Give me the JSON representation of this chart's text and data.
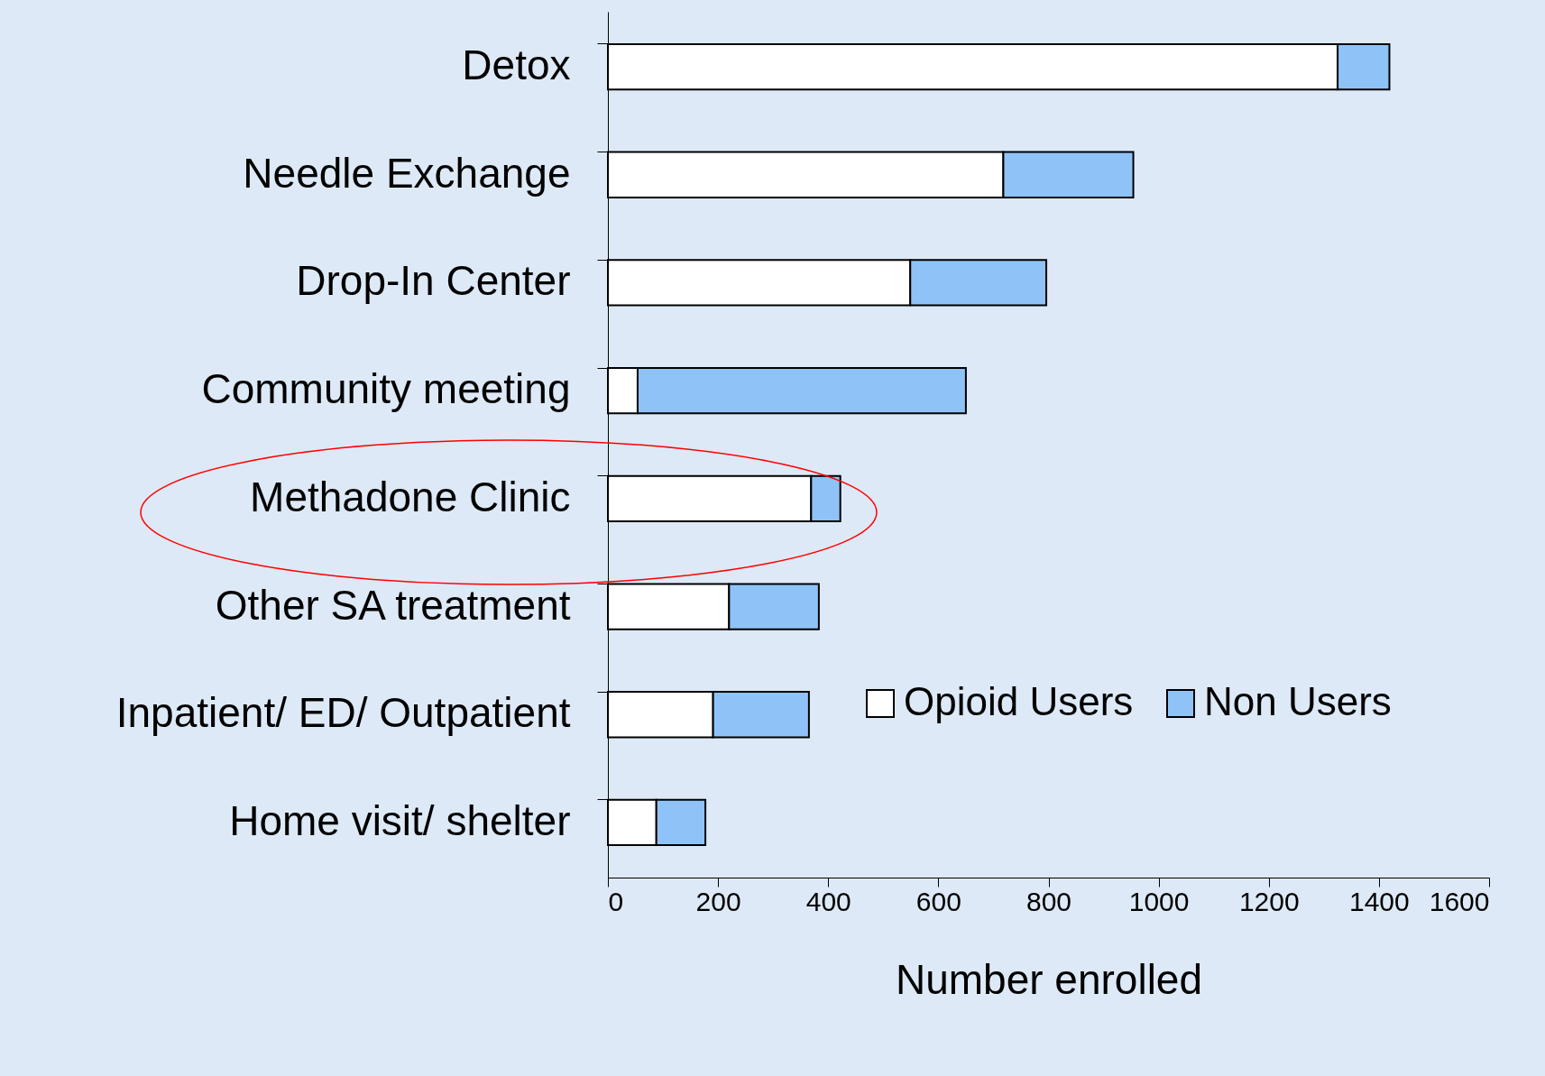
{
  "chart_data": {
    "type": "bar",
    "orientation": "horizontal",
    "stacked": true,
    "xlabel": "Number enrolled",
    "categories": [
      "Detox",
      "Needle Exchange",
      "Drop-In Center",
      "Community meeting",
      "Methadone Clinic",
      "Other SA treatment",
      "Inpatient/ ED/ Outpatient",
      "Home visit/ shelter"
    ],
    "series": [
      {
        "name": "Opioid Users",
        "color": "#ffffff",
        "values": [
          1325,
          718,
          549,
          54,
          369,
          220,
          191,
          88
        ]
      },
      {
        "name": "Non Users",
        "color": "#8fc3f8",
        "values": [
          94,
          236,
          247,
          596,
          53,
          163,
          174,
          89
        ]
      }
    ],
    "xlim": [
      0,
      1600
    ],
    "xticks": [
      0,
      200,
      400,
      600,
      800,
      1000,
      1200,
      1400,
      1600
    ],
    "legend": "right",
    "grid": false
  }
}
